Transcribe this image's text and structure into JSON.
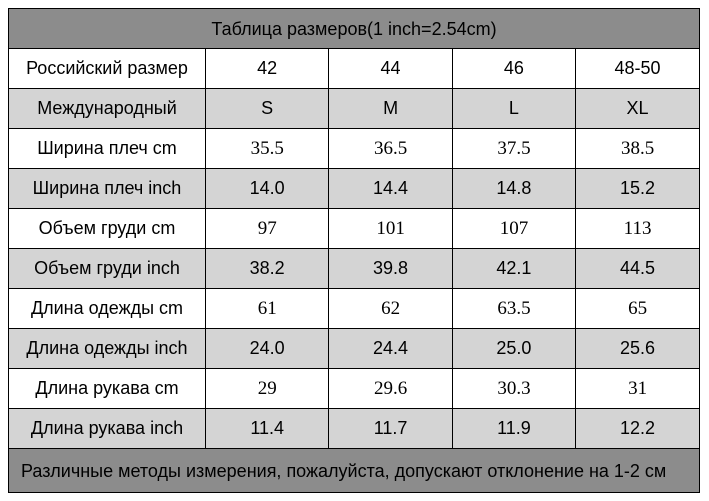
{
  "title": "Таблица размеров(1 inch=2.54cm)",
  "table": {
    "rows": [
      [
        "Российский размер",
        "42",
        "44",
        "46",
        "48-50"
      ],
      [
        "Международный",
        "S",
        "M",
        "L",
        "XL"
      ],
      [
        "Ширина плеч cm",
        "35.5",
        "36.5",
        "37.5",
        "38.5"
      ],
      [
        "Ширина плеч inch",
        "14.0",
        "14.4",
        "14.8",
        "15.2"
      ],
      [
        "Объем груди cm",
        "97",
        "101",
        "107",
        "113"
      ],
      [
        "Объем груди inch",
        "38.2",
        "39.8",
        "42.1",
        "44.5"
      ],
      [
        "Длина одежды cm",
        "61",
        "62",
        "63.5",
        "65"
      ],
      [
        "Длина одежды inch",
        "24.0",
        "24.4",
        "25.0",
        "25.6"
      ],
      [
        "Длина рукава cm",
        "29",
        "29.6",
        "30.3",
        "31"
      ],
      [
        "Длина рукава inch",
        "11.4",
        "11.7",
        "11.9",
        "12.2"
      ]
    ]
  },
  "footer": "Различные методы измерения, пожалуйста, допускают отклонение на 1-2 см"
}
